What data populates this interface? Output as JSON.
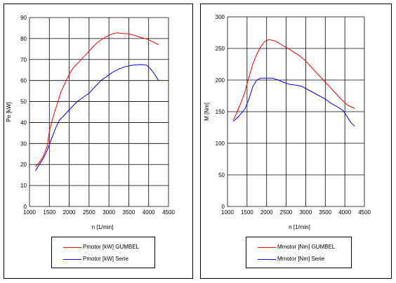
{
  "chart_data": [
    {
      "type": "line",
      "ylabel": "Pe [kW]",
      "xlabel": "n  [1/min]",
      "xlim": [
        1000,
        4500
      ],
      "ylim": [
        0,
        90
      ],
      "xticks": [
        1000,
        1500,
        2000,
        2500,
        3000,
        3500,
        4000,
        4500
      ],
      "yticks": [
        0,
        10,
        20,
        30,
        40,
        50,
        60,
        70,
        80,
        90
      ],
      "grid": true,
      "legend_position": "bottom",
      "series": [
        {
          "name": "Pmotor [kW] GUMBEL",
          "color": "#ff0000",
          "x": [
            1150,
            1250,
            1350,
            1450,
            1500,
            1600,
            1700,
            1800,
            1900,
            2000,
            2100,
            2250,
            2400,
            2550,
            2700,
            2850,
            3000,
            3100,
            3200,
            3350,
            3500,
            3650,
            3800,
            3950,
            4100,
            4250
          ],
          "y": [
            19,
            21,
            24,
            29,
            36,
            43,
            49,
            55,
            59,
            63,
            66,
            69,
            72,
            75,
            78,
            80,
            81.5,
            82.3,
            82.7,
            82.4,
            82.2,
            81.5,
            80.5,
            79.8,
            78.5,
            77
          ]
        },
        {
          "name": "Pmotor [kW] Serie",
          "color": "#0000ff",
          "x": [
            1150,
            1250,
            1350,
            1450,
            1550,
            1650,
            1750,
            1900,
            2050,
            2200,
            2350,
            2500,
            2650,
            2800,
            2950,
            3100,
            3250,
            3400,
            3550,
            3700,
            3850,
            3950,
            4050,
            4150,
            4250
          ],
          "y": [
            17,
            20,
            23,
            27,
            32,
            37,
            41,
            44,
            47,
            50,
            52,
            54,
            57,
            60,
            62,
            64,
            65.5,
            66.5,
            67.2,
            67.5,
            67.6,
            67.3,
            65.5,
            63,
            60
          ]
        }
      ]
    },
    {
      "type": "line",
      "ylabel": "M  [Nm]",
      "xlabel": "n  [1/min]",
      "xlim": [
        1000,
        4500
      ],
      "ylim": [
        0,
        300
      ],
      "xticks": [
        1000,
        1500,
        2000,
        2500,
        3000,
        3500,
        4000,
        4500
      ],
      "yticks": [
        0,
        50,
        100,
        150,
        200,
        250,
        300
      ],
      "grid": true,
      "legend_position": "bottom",
      "series": [
        {
          "name": "Mmotor [Nm] GUMBEL",
          "color": "#ff0000",
          "x": [
            1150,
            1250,
            1350,
            1450,
            1550,
            1650,
            1750,
            1850,
            1950,
            2050,
            2150,
            2250,
            2400,
            2550,
            2700,
            2850,
            3000,
            3150,
            3300,
            3450,
            3600,
            3750,
            3900,
            4050,
            4250
          ],
          "y": [
            137,
            150,
            165,
            182,
            205,
            226,
            241,
            253,
            261,
            264,
            263,
            261,
            255,
            250,
            244,
            238,
            230,
            220,
            210,
            200,
            190,
            180,
            170,
            161,
            155
          ]
        },
        {
          "name": "Mmotor [Nm] Serie",
          "color": "#0000ff",
          "x": [
            1150,
            1250,
            1350,
            1450,
            1550,
            1650,
            1750,
            1850,
            2000,
            2150,
            2300,
            2450,
            2600,
            2750,
            2900,
            3050,
            3200,
            3350,
            3500,
            3650,
            3800,
            3950,
            4050,
            4150,
            4250
          ],
          "y": [
            135,
            140,
            147,
            155,
            170,
            190,
            200,
            203,
            203,
            203,
            200,
            196,
            193,
            192,
            190,
            185,
            180,
            175,
            170,
            163,
            158,
            152,
            143,
            133,
            127
          ]
        }
      ]
    }
  ]
}
